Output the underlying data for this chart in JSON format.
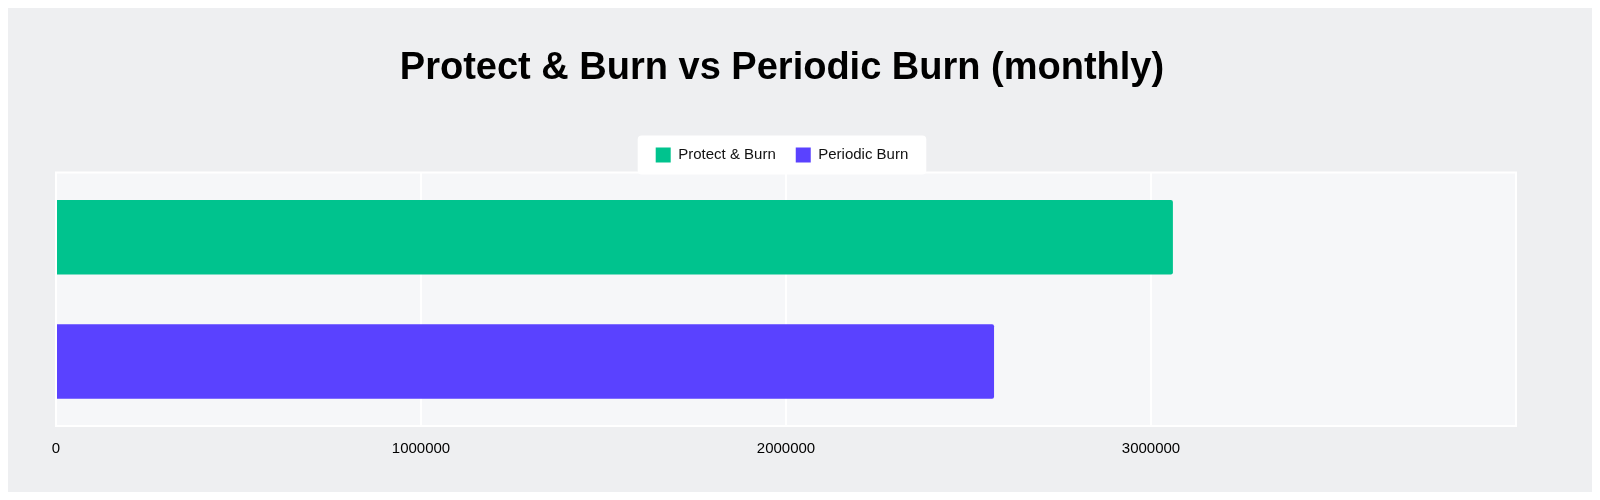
{
  "chart_data": {
    "type": "bar",
    "orientation": "horizontal",
    "title": "Protect & Burn vs Periodic Burn (monthly)",
    "categories": [
      null
    ],
    "series": [
      {
        "name": "Protect & Burn",
        "color": "#00c38e",
        "values": [
          3060000
        ]
      },
      {
        "name": "Periodic Burn",
        "color": "#5a42ff",
        "values": [
          2570000
        ]
      }
    ],
    "xlim": [
      0,
      4000000
    ],
    "xticks": [
      0,
      1000000,
      2000000,
      3000000
    ],
    "grid": "x",
    "legend": "top",
    "tick_labels": "x"
  }
}
